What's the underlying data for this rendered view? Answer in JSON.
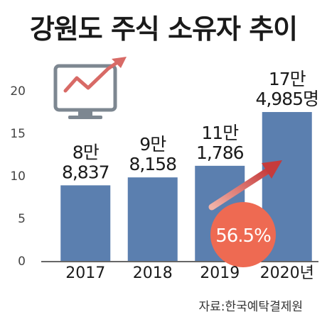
{
  "title": "강원도 주식 소유자 추이",
  "source": "자료:한국예탁결제원",
  "badge": "56.5%",
  "colors": {
    "bar": "#5b7faf",
    "badge": "#ee6a52",
    "arrow": "#d9534f",
    "monitor": "#7d8791",
    "text": "#1a1a1a"
  },
  "chart_data": {
    "type": "bar",
    "categories": [
      "2017",
      "2018",
      "2019",
      "2020년"
    ],
    "values": [
      88837,
      98158,
      111786,
      174985
    ],
    "value_labels": [
      [
        "8만",
        "8,837"
      ],
      [
        "9만",
        "8,158"
      ],
      [
        "11만",
        "1,786"
      ],
      [
        "17만",
        "4,985명"
      ]
    ],
    "y_ticks": [
      "0",
      "5",
      "10",
      "15",
      "20"
    ],
    "ylim": [
      0,
      20
    ]
  }
}
